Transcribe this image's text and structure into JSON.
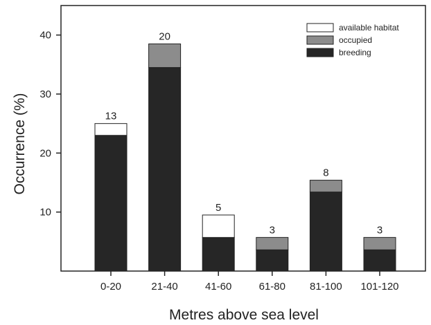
{
  "chart_data": {
    "type": "bar",
    "stacked": true,
    "xlabel": "Metres above sea level",
    "ylabel": "Occurrence (%)",
    "categories": [
      "0-20",
      "21-40",
      "41-60",
      "61-80",
      "81-100",
      "101-120"
    ],
    "series": [
      {
        "name": "breeding",
        "values": [
          23,
          34.5,
          5.7,
          3.6,
          13.4,
          3.6
        ],
        "color": "#262626"
      },
      {
        "name": "occupied",
        "values": [
          0,
          4,
          0,
          2.1,
          2,
          2.1
        ],
        "color": "#8c8c8c"
      },
      {
        "name": "available habitat",
        "values": [
          2,
          0,
          3.8,
          0,
          0,
          0
        ],
        "color": "#ffffff"
      }
    ],
    "data_labels": [
      "13",
      "20",
      "5",
      "3",
      "8",
      "3"
    ],
    "ylim": [
      0,
      45
    ],
    "yticks": [
      "10",
      "20",
      "30",
      "40"
    ],
    "grid": false,
    "legend_position": "top-right"
  }
}
